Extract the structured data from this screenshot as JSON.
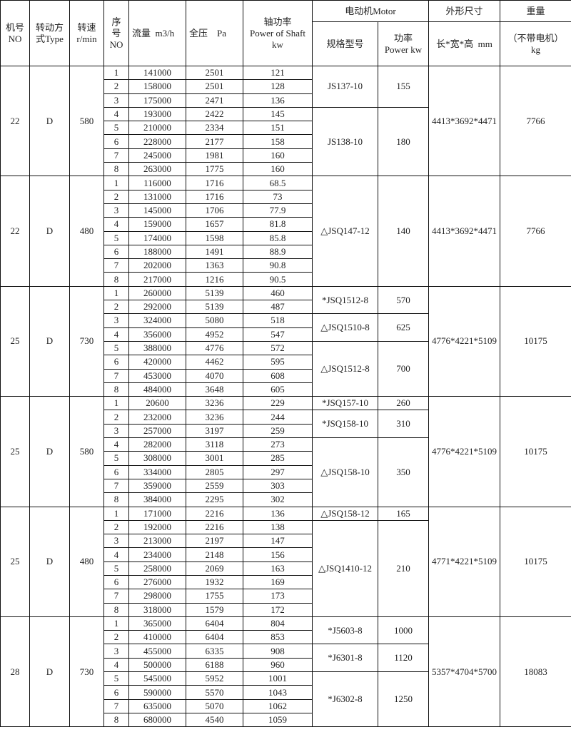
{
  "header": {
    "machine_no": "机号\nNO",
    "drive_type": "转动方\n式Type",
    "speed": "转速\nr/min",
    "seq": "序\n号\nNO",
    "flow": "流量  m3/h",
    "pressure": "全压    Pa",
    "shaft_power": "轴功率\nPower of Shaft\nkw",
    "motor": "电动机Motor",
    "motor_model": "规格型号",
    "motor_power": "功率\nPower kw",
    "dimensions": "外形尺寸",
    "dimensions_unit": "长*宽*高  mm",
    "weight": "重量",
    "weight_unit": "（不带电机）\nkg"
  },
  "groups": [
    {
      "no": "22",
      "type": "D",
      "speed": "580",
      "dims": "4413*3692*4471",
      "weight": "7766",
      "rows": [
        [
          "1",
          "141000",
          "2501",
          "121"
        ],
        [
          "2",
          "158000",
          "2501",
          "128"
        ],
        [
          "3",
          "175000",
          "2471",
          "136"
        ],
        [
          "4",
          "193000",
          "2422",
          "145"
        ],
        [
          "5",
          "210000",
          "2334",
          "151"
        ],
        [
          "6",
          "228000",
          "2177",
          "158"
        ],
        [
          "7",
          "245000",
          "1981",
          "160"
        ],
        [
          "8",
          "263000",
          "1775",
          "160"
        ]
      ],
      "motors": [
        {
          "model": "JS137-10",
          "power": "155",
          "span": 3
        },
        {
          "model": "JS138-10",
          "power": "180",
          "span": 5
        }
      ]
    },
    {
      "no": "22",
      "type": "D",
      "speed": "480",
      "dims": "4413*3692*4471",
      "weight": "7766",
      "rows": [
        [
          "1",
          "116000",
          "1716",
          "68.5"
        ],
        [
          "2",
          "131000",
          "1716",
          "73"
        ],
        [
          "3",
          "145000",
          "1706",
          "77.9"
        ],
        [
          "4",
          "159000",
          "1657",
          "81.8"
        ],
        [
          "5",
          "174000",
          "1598",
          "85.8"
        ],
        [
          "6",
          "188000",
          "1491",
          "88.9"
        ],
        [
          "7",
          "202000",
          "1363",
          "90.8"
        ],
        [
          "8",
          "217000",
          "1216",
          "90.5"
        ]
      ],
      "motors": [
        {
          "model": "△JSQ147-12",
          "power": "140",
          "span": 8
        }
      ]
    },
    {
      "no": "25",
      "type": "D",
      "speed": "730",
      "dims": "4776*4221*5109",
      "weight": "10175",
      "rows": [
        [
          "1",
          "260000",
          "5139",
          "460"
        ],
        [
          "2",
          "292000",
          "5139",
          "487"
        ],
        [
          "3",
          "324000",
          "5080",
          "518"
        ],
        [
          "4",
          "356000",
          "4952",
          "547"
        ],
        [
          "5",
          "388000",
          "4776",
          "572"
        ],
        [
          "6",
          "420000",
          "4462",
          "595"
        ],
        [
          "7",
          "453000",
          "4070",
          "608"
        ],
        [
          "8",
          "484000",
          "3648",
          "605"
        ]
      ],
      "motors": [
        {
          "model": "*JSQ1512-8",
          "power": "570",
          "span": 2
        },
        {
          "model": "△JSQ1510-8",
          "power": "625",
          "span": 2
        },
        {
          "model": "△JSQ1512-8",
          "power": "700",
          "span": 4
        }
      ]
    },
    {
      "no": "25",
      "type": "D",
      "speed": "580",
      "dims": "4776*4221*5109",
      "weight": "10175",
      "rows": [
        [
          "1",
          "20600",
          "3236",
          "229"
        ],
        [
          "2",
          "232000",
          "3236",
          "244"
        ],
        [
          "3",
          "257000",
          "3197",
          "259"
        ],
        [
          "4",
          "282000",
          "3118",
          "273"
        ],
        [
          "5",
          "308000",
          "3001",
          "285"
        ],
        [
          "6",
          "334000",
          "2805",
          "297"
        ],
        [
          "7",
          "359000",
          "2559",
          "303"
        ],
        [
          "8",
          "384000",
          "2295",
          "302"
        ]
      ],
      "motors": [
        {
          "model": "*JSQ157-10",
          "power": "260",
          "span": 1
        },
        {
          "model": "*JSQ158-10",
          "power": "310",
          "span": 2
        },
        {
          "model": "△JSQ158-10",
          "power": "350",
          "span": 5
        }
      ]
    },
    {
      "no": "25",
      "type": "D",
      "speed": "480",
      "dims": "4771*4221*5109",
      "weight": "10175",
      "rows": [
        [
          "1",
          "171000",
          "2216",
          "136"
        ],
        [
          "2",
          "192000",
          "2216",
          "138"
        ],
        [
          "3",
          "213000",
          "2197",
          "147"
        ],
        [
          "4",
          "234000",
          "2148",
          "156"
        ],
        [
          "5",
          "258000",
          "2069",
          "163"
        ],
        [
          "6",
          "276000",
          "1932",
          "169"
        ],
        [
          "7",
          "298000",
          "1755",
          "173"
        ],
        [
          "8",
          "318000",
          "1579",
          "172"
        ]
      ],
      "motors": [
        {
          "model": "△JSQ158-12",
          "power": "165",
          "span": 1
        },
        {
          "model": "△JSQ1410-12",
          "power": "210",
          "span": 7
        }
      ]
    },
    {
      "no": "28",
      "type": "D",
      "speed": "730",
      "dims": "5357*4704*5700",
      "weight": "18083",
      "rows": [
        [
          "1",
          "365000",
          "6404",
          "804"
        ],
        [
          "2",
          "410000",
          "6404",
          "853"
        ],
        [
          "3",
          "455000",
          "6335",
          "908"
        ],
        [
          "4",
          "500000",
          "6188",
          "960"
        ],
        [
          "5",
          "545000",
          "5952",
          "1001"
        ],
        [
          "6",
          "590000",
          "5570",
          "1043"
        ],
        [
          "7",
          "635000",
          "5070",
          "1062"
        ],
        [
          "8",
          "680000",
          "4540",
          "1059"
        ]
      ],
      "motors": [
        {
          "model": "*J5603-8",
          "power": "1000",
          "span": 2
        },
        {
          "model": "*J6301-8",
          "power": "1120",
          "span": 2
        },
        {
          "model": "*J6302-8",
          "power": "1250",
          "span": 4
        }
      ]
    }
  ]
}
